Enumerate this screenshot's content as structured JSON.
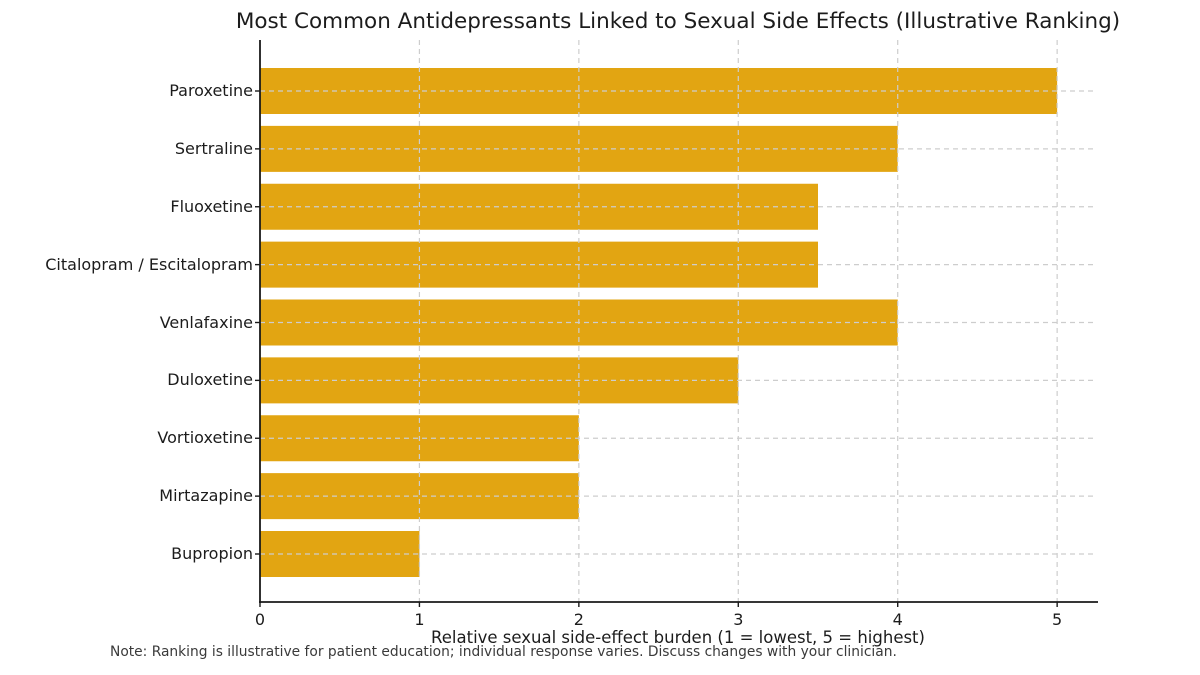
{
  "figure": {
    "title": "Most Common Antidepressants Linked to Sexual Side Effects (Illustrative Ranking)",
    "note": "Note: Ranking is illustrative for patient education; individual response varies. Discuss changes with your clinician."
  },
  "chart_data": {
    "type": "bar",
    "orientation": "horizontal",
    "title": "Most Common Antidepressants Linked to Sexual Side Effects (Illustrative Ranking)",
    "categories": [
      "Paroxetine",
      "Sertraline",
      "Fluoxetine",
      "Citalopram / Escitalopram",
      "Venlafaxine",
      "Duloxetine",
      "Vortioxetine",
      "Mirtazapine",
      "Bupropion"
    ],
    "values": [
      5,
      4,
      3.5,
      3.5,
      4,
      3,
      2,
      2,
      1
    ],
    "xlabel": "Relative sexual side-effect burden (1 = lowest, 5 = highest)",
    "ylabel": "",
    "x_ticks": [
      0,
      1,
      2,
      3,
      4,
      5
    ],
    "xlim": [
      0,
      5.25
    ],
    "grid": true,
    "grid_style": "dashed",
    "legend": "none",
    "bar_color": "#E2A512",
    "grid_color": "#cdcdcd",
    "axis_color": "#1a1a1a",
    "note": "Note: Ranking is illustrative for patient education; individual response varies. Discuss changes with your clinician."
  }
}
